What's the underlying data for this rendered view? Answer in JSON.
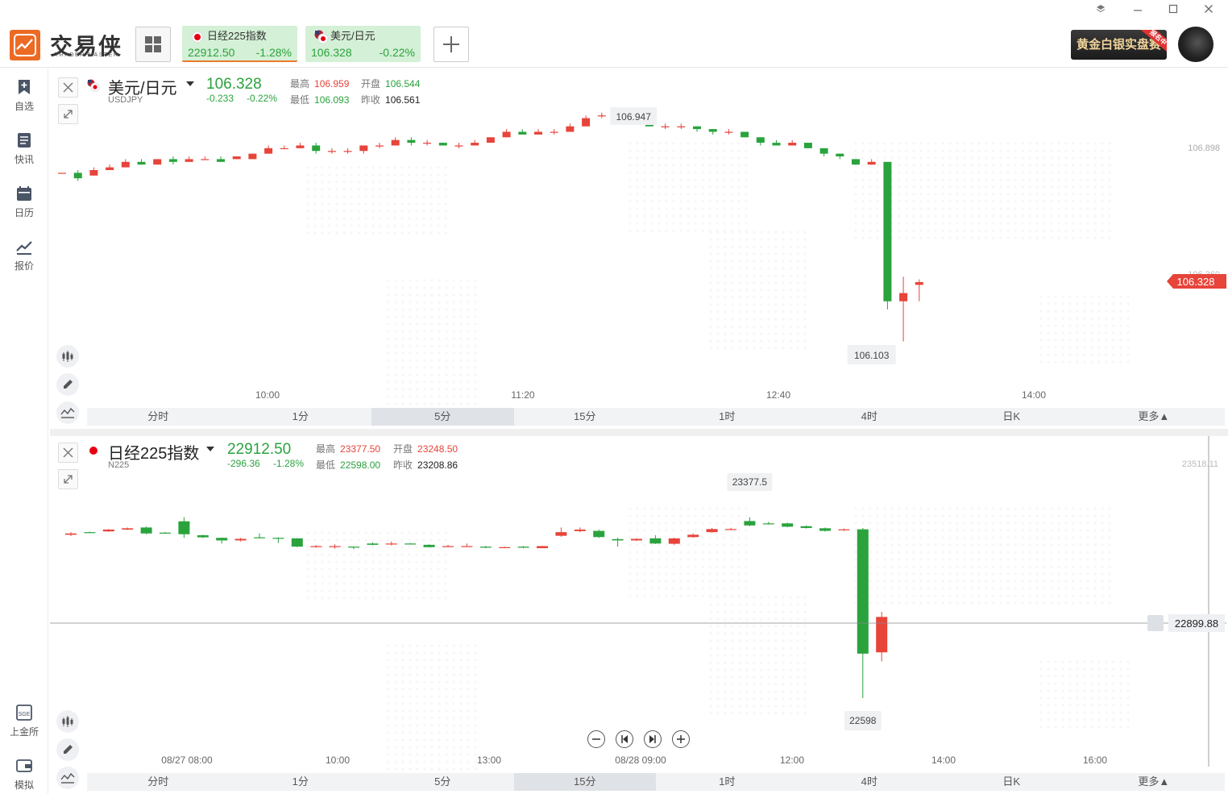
{
  "app": {
    "name": "交易侠",
    "subtitle": "TRADER MASTER",
    "promo_label": "黄金白银实盘赛",
    "promo_badge": "报名中",
    "window_controls": [
      "layers-icon",
      "minimize-icon",
      "maximize-icon",
      "close-icon"
    ]
  },
  "tabs": [
    {
      "name": "日经225指数",
      "price": "22912.50",
      "change_pct": "-1.28%",
      "flag": "japan-flag-icon",
      "active": true
    },
    {
      "name": "美元/日元",
      "price": "106.328",
      "change_pct": "-0.22%",
      "flag": "us-japan-flag-icon",
      "active": false
    }
  ],
  "sidebar": {
    "items": [
      {
        "label": "自选",
        "icon": "bookmark-add-icon"
      },
      {
        "label": "快讯",
        "icon": "news-list-icon"
      },
      {
        "label": "日历",
        "icon": "calendar-icon"
      },
      {
        "label": "报价",
        "icon": "quote-chart-icon"
      }
    ],
    "bottom_items": [
      {
        "label": "上金所",
        "icon": "sge-icon"
      },
      {
        "label": "模拟",
        "icon": "wallet-icon"
      }
    ]
  },
  "panels": [
    {
      "name": "美元/日元",
      "code": "USDJPY",
      "price": "106.328",
      "change": "-0.233",
      "change_pct": "-0.22%",
      "high_label": "最高",
      "high": "106.959",
      "open_label": "开盘",
      "open": "106.544",
      "low_label": "最低",
      "low": "106.093",
      "prev_label": "昨收",
      "prev": "106.561",
      "max_marker": "106.947",
      "min_marker": "106.103",
      "right_axis_top": "106.898",
      "right_axis_partial": "106.360",
      "last_price_tag": "106.328",
      "time_labels": [
        "10:00",
        "11:20",
        "12:40",
        "14:00"
      ],
      "timeframes": [
        "分时",
        "1分",
        "5分",
        "15分",
        "1时",
        "4时",
        "日K",
        "更多▲"
      ],
      "active_timeframe": "5分"
    },
    {
      "name": "日经225指数",
      "code": "N225",
      "price": "22912.50",
      "change": "-296.36",
      "change_pct": "-1.28%",
      "high_label": "最高",
      "high": "23377.50",
      "open_label": "开盘",
      "open": "23248.50",
      "low_label": "最低",
      "low": "22598.00",
      "prev_label": "昨收",
      "prev": "23208.86",
      "max_marker": "23377.5",
      "min_marker": "22598",
      "right_axis_top": "23518.11",
      "crosshair_price": "22899.88",
      "time_labels": [
        "08/27 08:00",
        "10:00",
        "13:00",
        "08/28 09:00",
        "12:00",
        "14:00",
        "16:00"
      ],
      "timeframes": [
        "分时",
        "1分",
        "5分",
        "15分",
        "1时",
        "4时",
        "日K",
        "更多▲"
      ],
      "active_timeframe": "15分"
    }
  ],
  "colors": {
    "up": "#e7443a",
    "down": "#2aa33d",
    "brand": "#ec6a24"
  },
  "chart_data": [
    {
      "type": "candlestick",
      "title": "美元/日元",
      "ylim": [
        106.09,
        106.96
      ],
      "candles": [
        {
          "o": 106.72,
          "c": 106.72,
          "h": 106.72,
          "l": 106.72
        },
        {
          "o": 106.72,
          "c": 106.7,
          "h": 106.73,
          "l": 106.69
        },
        {
          "o": 106.71,
          "c": 106.73,
          "h": 106.74,
          "l": 106.71
        },
        {
          "o": 106.73,
          "c": 106.74,
          "h": 106.75,
          "l": 106.73
        },
        {
          "o": 106.74,
          "c": 106.76,
          "h": 106.77,
          "l": 106.74
        },
        {
          "o": 106.76,
          "c": 106.75,
          "h": 106.77,
          "l": 106.75
        },
        {
          "o": 106.75,
          "c": 106.77,
          "h": 106.77,
          "l": 106.75
        },
        {
          "o": 106.77,
          "c": 106.76,
          "h": 106.78,
          "l": 106.75
        },
        {
          "o": 106.76,
          "c": 106.77,
          "h": 106.78,
          "l": 106.76
        },
        {
          "o": 106.77,
          "c": 106.77,
          "h": 106.78,
          "l": 106.77
        },
        {
          "o": 106.77,
          "c": 106.76,
          "h": 106.78,
          "l": 106.76
        },
        {
          "o": 106.77,
          "c": 106.78,
          "h": 106.78,
          "l": 106.77
        },
        {
          "o": 106.77,
          "c": 106.79,
          "h": 106.79,
          "l": 106.77
        },
        {
          "o": 106.79,
          "c": 106.81,
          "h": 106.82,
          "l": 106.79
        },
        {
          "o": 106.81,
          "c": 106.81,
          "h": 106.82,
          "l": 106.81
        },
        {
          "o": 106.81,
          "c": 106.82,
          "h": 106.83,
          "l": 106.81
        },
        {
          "o": 106.82,
          "c": 106.8,
          "h": 106.83,
          "l": 106.79
        },
        {
          "o": 106.8,
          "c": 106.8,
          "h": 106.81,
          "l": 106.79
        },
        {
          "o": 106.8,
          "c": 106.8,
          "h": 106.81,
          "l": 106.79
        },
        {
          "o": 106.8,
          "c": 106.82,
          "h": 106.82,
          "l": 106.79
        },
        {
          "o": 106.82,
          "c": 106.82,
          "h": 106.83,
          "l": 106.81
        },
        {
          "o": 106.82,
          "c": 106.84,
          "h": 106.85,
          "l": 106.82
        },
        {
          "o": 106.84,
          "c": 106.83,
          "h": 106.85,
          "l": 106.82
        },
        {
          "o": 106.83,
          "c": 106.83,
          "h": 106.84,
          "l": 106.82
        },
        {
          "o": 106.83,
          "c": 106.82,
          "h": 106.83,
          "l": 106.82
        },
        {
          "o": 106.82,
          "c": 106.82,
          "h": 106.83,
          "l": 106.81
        },
        {
          "o": 106.82,
          "c": 106.83,
          "h": 106.84,
          "l": 106.82
        },
        {
          "o": 106.83,
          "c": 106.85,
          "h": 106.85,
          "l": 106.83
        },
        {
          "o": 106.85,
          "c": 106.87,
          "h": 106.88,
          "l": 106.85
        },
        {
          "o": 106.87,
          "c": 106.86,
          "h": 106.88,
          "l": 106.86
        },
        {
          "o": 106.86,
          "c": 106.87,
          "h": 106.88,
          "l": 106.86
        },
        {
          "o": 106.87,
          "c": 106.87,
          "h": 106.88,
          "l": 106.86
        },
        {
          "o": 106.87,
          "c": 106.89,
          "h": 106.9,
          "l": 106.87
        },
        {
          "o": 106.89,
          "c": 106.92,
          "h": 106.93,
          "l": 106.89
        },
        {
          "o": 106.93,
          "c": 106.93,
          "h": 106.94,
          "l": 106.92
        },
        {
          "o": 106.93,
          "c": 106.91,
          "h": 106.94,
          "l": 106.91
        },
        {
          "o": 106.92,
          "c": 106.92,
          "h": 106.947,
          "l": 106.91
        },
        {
          "o": 106.92,
          "c": 106.89,
          "h": 106.92,
          "l": 106.89
        },
        {
          "o": 106.89,
          "c": 106.89,
          "h": 106.9,
          "l": 106.88
        },
        {
          "o": 106.89,
          "c": 106.89,
          "h": 106.9,
          "l": 106.88
        },
        {
          "o": 106.89,
          "c": 106.88,
          "h": 106.89,
          "l": 106.87
        },
        {
          "o": 106.88,
          "c": 106.87,
          "h": 106.88,
          "l": 106.86
        },
        {
          "o": 106.87,
          "c": 106.87,
          "h": 106.88,
          "l": 106.86
        },
        {
          "o": 106.87,
          "c": 106.85,
          "h": 106.87,
          "l": 106.85
        },
        {
          "o": 106.85,
          "c": 106.83,
          "h": 106.85,
          "l": 106.82
        },
        {
          "o": 106.83,
          "c": 106.82,
          "h": 106.84,
          "l": 106.82
        },
        {
          "o": 106.82,
          "c": 106.83,
          "h": 106.84,
          "l": 106.82
        },
        {
          "o": 106.83,
          "c": 106.81,
          "h": 106.83,
          "l": 106.81
        },
        {
          "o": 106.81,
          "c": 106.79,
          "h": 106.81,
          "l": 106.78
        },
        {
          "o": 106.79,
          "c": 106.78,
          "h": 106.79,
          "l": 106.77
        },
        {
          "o": 106.77,
          "c": 106.75,
          "h": 106.77,
          "l": 106.75
        },
        {
          "o": 106.75,
          "c": 106.76,
          "h": 106.77,
          "l": 106.75
        },
        {
          "o": 106.76,
          "c": 106.25,
          "h": 106.76,
          "l": 106.22
        },
        {
          "o": 106.25,
          "c": 106.28,
          "h": 106.34,
          "l": 106.103
        },
        {
          "o": 106.31,
          "c": 106.32,
          "h": 106.33,
          "l": 106.25
        }
      ]
    },
    {
      "type": "candlestick",
      "title": "日经225指数",
      "ylim": [
        22598,
        23518.11
      ],
      "candles": [
        {
          "o": 23230,
          "c": 23235,
          "h": 23240,
          "l": 23225
        },
        {
          "o": 23240,
          "c": 23238,
          "h": 23242,
          "l": 23236
        },
        {
          "o": 23243,
          "c": 23250,
          "h": 23252,
          "l": 23241
        },
        {
          "o": 23250,
          "c": 23255,
          "h": 23258,
          "l": 23248
        },
        {
          "o": 23258,
          "c": 23235,
          "h": 23262,
          "l": 23232
        },
        {
          "o": 23238,
          "c": 23236,
          "h": 23241,
          "l": 23234
        },
        {
          "o": 23282,
          "c": 23232,
          "h": 23298,
          "l": 23218
        },
        {
          "o": 23228,
          "c": 23220,
          "h": 23230,
          "l": 23217
        },
        {
          "o": 23218,
          "c": 23208,
          "h": 23219,
          "l": 23196
        },
        {
          "o": 23208,
          "c": 23214,
          "h": 23218,
          "l": 23204
        },
        {
          "o": 23220,
          "c": 23218,
          "h": 23235,
          "l": 23216
        },
        {
          "o": 23218,
          "c": 23216,
          "h": 23220,
          "l": 23198
        },
        {
          "o": 23216,
          "c": 23184,
          "h": 23217,
          "l": 23182
        },
        {
          "o": 23185,
          "c": 23186,
          "h": 23190,
          "l": 23180
        },
        {
          "o": 23186,
          "c": 23186,
          "h": 23193,
          "l": 23176
        },
        {
          "o": 23184,
          "c": 23182,
          "h": 23185,
          "l": 23174
        },
        {
          "o": 23196,
          "c": 23191,
          "h": 23200,
          "l": 23189
        },
        {
          "o": 23193,
          "c": 23196,
          "h": 23204,
          "l": 23189
        },
        {
          "o": 23196,
          "c": 23194,
          "h": 23198,
          "l": 23192
        },
        {
          "o": 23191,
          "c": 23182,
          "h": 23193,
          "l": 23181
        },
        {
          "o": 23184,
          "c": 23186,
          "h": 23191,
          "l": 23182
        },
        {
          "o": 23186,
          "c": 23186,
          "h": 23196,
          "l": 23183
        },
        {
          "o": 23184,
          "c": 23180,
          "h": 23186,
          "l": 23178
        },
        {
          "o": 23180,
          "c": 23182,
          "h": 23184,
          "l": 23178
        },
        {
          "o": 23184,
          "c": 23180,
          "h": 23186,
          "l": 23178
        },
        {
          "o": 23178,
          "c": 23186,
          "h": 23187,
          "l": 23178
        },
        {
          "o": 23226,
          "c": 23240,
          "h": 23258,
          "l": 23222
        },
        {
          "o": 23244,
          "c": 23250,
          "h": 23258,
          "l": 23240
        },
        {
          "o": 23245,
          "c": 23221,
          "h": 23250,
          "l": 23218
        },
        {
          "o": 23213,
          "c": 23208,
          "h": 23219,
          "l": 23184
        },
        {
          "o": 23208,
          "c": 23214,
          "h": 23216,
          "l": 23206
        },
        {
          "o": 23216,
          "c": 23196,
          "h": 23228,
          "l": 23194
        },
        {
          "o": 23195,
          "c": 23216,
          "h": 23218,
          "l": 23191
        },
        {
          "o": 23221,
          "c": 23230,
          "h": 23235,
          "l": 23218
        },
        {
          "o": 23240,
          "c": 23252,
          "h": 23256,
          "l": 23238
        },
        {
          "o": 23252,
          "c": 23252,
          "h": 23257,
          "l": 23248
        },
        {
          "o": 23283,
          "c": 23266,
          "h": 23298,
          "l": 23263
        },
        {
          "o": 23274,
          "c": 23271,
          "h": 23280,
          "l": 23269
        },
        {
          "o": 23274,
          "c": 23261,
          "h": 23277,
          "l": 23259
        },
        {
          "o": 23263,
          "c": 23256,
          "h": 23266,
          "l": 23254
        },
        {
          "o": 23255,
          "c": 23245,
          "h": 23258,
          "l": 23242
        },
        {
          "o": 23248,
          "c": 23251,
          "h": 23254,
          "l": 23245
        },
        {
          "o": 23251,
          "c": 22770,
          "h": 23256,
          "l": 22598
        },
        {
          "o": 22775,
          "c": 22912,
          "h": 22932,
          "l": 22740
        }
      ]
    }
  ]
}
